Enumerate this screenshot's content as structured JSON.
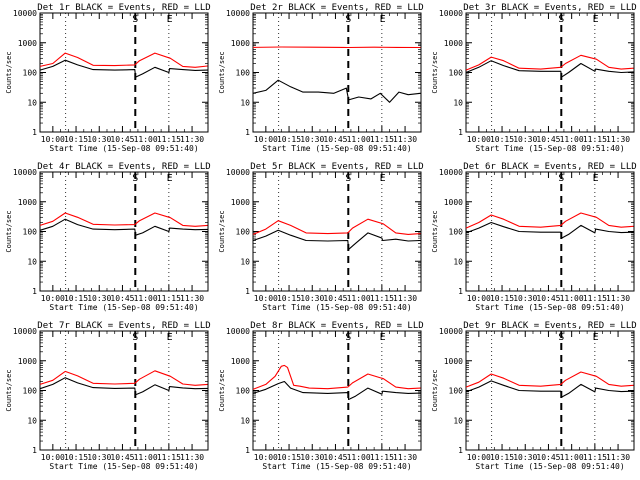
{
  "figure": {
    "xtick_labels": [
      "10:00",
      "10:15",
      "10:30",
      "10:45",
      "11:00",
      "11:15",
      "11:30"
    ],
    "ytick_labels": [
      "1",
      "10",
      "100",
      "1000",
      "10000"
    ],
    "ylabel": "Counts/sec",
    "xlabel": "Start Time (15-Sep-08 09:51:40)",
    "marker_s": "S",
    "marker_e": "E"
  },
  "chart_data": [
    {
      "type": "line",
      "title": "Det 1r BLACK = Events, RED = LLD",
      "xlabel": "Start Time (15-Sep-08 09:51:40)",
      "ylabel": "Counts/sec",
      "y_scale": "log",
      "ylim": [
        1,
        10000
      ],
      "xlim_minutes": [
        -8.3,
        100.3
      ],
      "x_ticks": [
        "10:00",
        "10:15",
        "10:30",
        "10:45",
        "11:00",
        "11:15",
        "11:30"
      ],
      "dotted_vlines_minutes": [
        8.3,
        75.0
      ],
      "dashed_vline_minutes": 53.3,
      "markers": [
        {
          "label": "S",
          "minute": 53.3
        },
        {
          "label": "E",
          "minute": 75.5
        }
      ],
      "series": [
        {
          "name": "RED = LLD",
          "color": "#ff0000",
          "x": [
            -8.3,
            0,
            8,
            16,
            26,
            40,
            53,
            56,
            66,
            76,
            84,
            92,
            100
          ],
          "y": [
            160,
            200,
            450,
            320,
            175,
            170,
            180,
            250,
            450,
            300,
            160,
            150,
            165
          ]
        },
        {
          "name": "BLACK = Events",
          "color": "#000000",
          "x": [
            -8.3,
            0,
            8,
            16,
            26,
            40,
            53,
            53.5,
            58,
            66,
            75,
            75.5,
            84,
            92,
            100
          ],
          "y": [
            120,
            160,
            260,
            180,
            125,
            120,
            125,
            70,
            90,
            150,
            100,
            135,
            125,
            118,
            120
          ]
        }
      ]
    },
    {
      "type": "line",
      "title": "Det 2r BLACK = Events, RED = LLD",
      "xlabel": "Start Time (15-Sep-08 09:51:40)",
      "ylabel": "Counts/sec",
      "y_scale": "log",
      "ylim": [
        1,
        10000
      ],
      "xlim_minutes": [
        -8.3,
        100.3
      ],
      "x_ticks": [
        "10:00",
        "10:15",
        "10:30",
        "10:45",
        "11:00",
        "11:15",
        "11:30"
      ],
      "dotted_vlines_minutes": [
        8.3,
        75.0
      ],
      "dashed_vline_minutes": 53.3,
      "markers": [
        {
          "label": "S",
          "minute": 53.3
        },
        {
          "label": "E",
          "minute": 75.5
        }
      ],
      "series": [
        {
          "name": "RED = LLD",
          "color": "#ff0000",
          "x": [
            -8.3,
            10,
            30,
            50,
            53,
            70,
            85,
            100
          ],
          "y": [
            700,
            720,
            710,
            700,
            690,
            710,
            700,
            690
          ]
        },
        {
          "name": "BLACK = Events",
          "color": "#000000",
          "x": [
            -8.3,
            0,
            8,
            16,
            24,
            34,
            44,
            52,
            53.5,
            60,
            68,
            74,
            80,
            86,
            92,
            100
          ],
          "y": [
            20,
            25,
            55,
            33,
            22,
            22,
            20,
            30,
            12,
            15,
            13,
            20,
            10,
            22,
            18,
            20
          ]
        }
      ]
    },
    {
      "type": "line",
      "title": "Det 3r BLACK = Events, RED = LLD",
      "xlabel": "Start Time (15-Sep-08 09:51:40)",
      "ylabel": "Counts/sec",
      "y_scale": "log",
      "ylim": [
        1,
        10000
      ],
      "xlim_minutes": [
        -8.3,
        100.3
      ],
      "x_ticks": [
        "10:00",
        "10:15",
        "10:30",
        "10:45",
        "11:00",
        "11:15",
        "11:30"
      ],
      "dotted_vlines_minutes": [
        8.3,
        75.0
      ],
      "dashed_vline_minutes": 53.3,
      "markers": [
        {
          "label": "S",
          "minute": 53.3
        },
        {
          "label": "E",
          "minute": 75.5
        }
      ],
      "series": [
        {
          "name": "RED = LLD",
          "color": "#ff0000",
          "x": [
            -8.3,
            0,
            8,
            16,
            26,
            40,
            53,
            56,
            66,
            76,
            84,
            92,
            100
          ],
          "y": [
            120,
            180,
            330,
            250,
            140,
            130,
            150,
            200,
            380,
            280,
            150,
            130,
            140
          ]
        },
        {
          "name": "BLACK = Events",
          "color": "#000000",
          "x": [
            -8.3,
            0,
            8,
            16,
            26,
            40,
            53,
            53.5,
            58,
            66,
            75,
            75.5,
            84,
            92,
            100
          ],
          "y": [
            100,
            150,
            250,
            170,
            115,
            110,
            110,
            70,
            100,
            200,
            110,
            130,
            110,
            100,
            105
          ]
        }
      ]
    },
    {
      "type": "line",
      "title": "Det 4r BLACK = Events, RED = LLD",
      "xlabel": "Start Time (15-Sep-08 09:51:40)",
      "ylabel": "Counts/sec",
      "y_scale": "log",
      "ylim": [
        1,
        10000
      ],
      "xlim_minutes": [
        -8.3,
        100.3
      ],
      "x_ticks": [
        "10:00",
        "10:15",
        "10:30",
        "10:45",
        "11:00",
        "11:15",
        "11:30"
      ],
      "dotted_vlines_minutes": [
        8.3,
        75.0
      ],
      "dashed_vline_minutes": 53.3,
      "markers": [
        {
          "label": "S",
          "minute": 53.3
        },
        {
          "label": "E",
          "minute": 75.5
        }
      ],
      "series": [
        {
          "name": "RED = LLD",
          "color": "#ff0000",
          "x": [
            -8.3,
            0,
            8,
            16,
            26,
            40,
            53,
            56,
            66,
            76,
            84,
            92,
            100
          ],
          "y": [
            160,
            220,
            420,
            300,
            175,
            165,
            170,
            230,
            420,
            290,
            160,
            150,
            160
          ]
        },
        {
          "name": "BLACK = Events",
          "color": "#000000",
          "x": [
            -8.3,
            0,
            8,
            16,
            26,
            40,
            53,
            53.5,
            58,
            66,
            75,
            75.5,
            84,
            92,
            100
          ],
          "y": [
            110,
            150,
            260,
            170,
            120,
            115,
            120,
            75,
            90,
            150,
            100,
            130,
            120,
            115,
            118
          ]
        }
      ]
    },
    {
      "type": "line",
      "title": "Det 5r BLACK = Events, RED = LLD",
      "xlabel": "Start Time (15-Sep-08 09:51:40)",
      "ylabel": "Counts/sec",
      "y_scale": "log",
      "ylim": [
        1,
        10000
      ],
      "xlim_minutes": [
        -8.3,
        100.3
      ],
      "x_ticks": [
        "10:00",
        "10:15",
        "10:30",
        "10:45",
        "11:00",
        "11:15",
        "11:30"
      ],
      "dotted_vlines_minutes": [
        8.3,
        75.0
      ],
      "dashed_vline_minutes": 53.3,
      "markers": [
        {
          "label": "S",
          "minute": 53.3
        },
        {
          "label": "E",
          "minute": 75.5
        }
      ],
      "series": [
        {
          "name": "RED = LLD",
          "color": "#ff0000",
          "x": [
            -8.3,
            0,
            8,
            16,
            26,
            40,
            53,
            56,
            66,
            76,
            84,
            92,
            100
          ],
          "y": [
            80,
            120,
            230,
            160,
            90,
            85,
            90,
            130,
            260,
            180,
            90,
            80,
            85
          ]
        },
        {
          "name": "BLACK = Events",
          "color": "#000000",
          "x": [
            -8.3,
            0,
            8,
            16,
            26,
            40,
            53,
            53.5,
            58,
            66,
            75,
            75.5,
            84,
            92,
            100
          ],
          "y": [
            50,
            70,
            110,
            75,
            50,
            48,
            50,
            25,
            40,
            90,
            60,
            50,
            55,
            48,
            50
          ]
        }
      ]
    },
    {
      "type": "line",
      "title": "Det 6r BLACK = Events, RED = LLD",
      "xlabel": "Start Time (15-Sep-08 09:51:40)",
      "ylabel": "Counts/sec",
      "y_scale": "log",
      "ylim": [
        1,
        10000
      ],
      "xlim_minutes": [
        -8.3,
        100.3
      ],
      "x_ticks": [
        "10:00",
        "10:15",
        "10:30",
        "10:45",
        "11:00",
        "11:15",
        "11:30"
      ],
      "dotted_vlines_minutes": [
        8.3,
        75.0
      ],
      "dashed_vline_minutes": 53.3,
      "markers": [
        {
          "label": "S",
          "minute": 53.3
        },
        {
          "label": "E",
          "minute": 75.5
        }
      ],
      "series": [
        {
          "name": "RED = LLD",
          "color": "#ff0000",
          "x": [
            -8.3,
            0,
            8,
            16,
            26,
            40,
            53,
            56,
            66,
            76,
            84,
            92,
            100
          ],
          "y": [
            130,
            200,
            360,
            260,
            150,
            140,
            160,
            220,
            420,
            300,
            160,
            140,
            150
          ]
        },
        {
          "name": "BLACK = Events",
          "color": "#000000",
          "x": [
            -8.3,
            0,
            8,
            16,
            26,
            40,
            53,
            53.5,
            58,
            66,
            75,
            75.5,
            84,
            92,
            100
          ],
          "y": [
            90,
            130,
            200,
            145,
            100,
            95,
            95,
            60,
            80,
            160,
            90,
            120,
            100,
            92,
            95
          ]
        }
      ]
    },
    {
      "type": "line",
      "title": "Det 7r BLACK = Events, RED = LLD",
      "xlabel": "Start Time (15-Sep-08 09:51:40)",
      "ylabel": "Counts/sec",
      "y_scale": "log",
      "ylim": [
        1,
        10000
      ],
      "xlim_minutes": [
        -8.3,
        100.3
      ],
      "x_ticks": [
        "10:00",
        "10:15",
        "10:30",
        "10:45",
        "11:00",
        "11:15",
        "11:30"
      ],
      "dotted_vlines_minutes": [
        8.3,
        75.0
      ],
      "dashed_vline_minutes": 53.3,
      "markers": [
        {
          "label": "S",
          "minute": 53.3
        },
        {
          "label": "E",
          "minute": 75.5
        }
      ],
      "series": [
        {
          "name": "RED = LLD",
          "color": "#ff0000",
          "x": [
            -8.3,
            0,
            8,
            16,
            26,
            40,
            53,
            56,
            66,
            76,
            84,
            92,
            100
          ],
          "y": [
            160,
            220,
            440,
            310,
            175,
            165,
            175,
            240,
            460,
            300,
            165,
            150,
            160
          ]
        },
        {
          "name": "BLACK = Events",
          "color": "#000000",
          "x": [
            -8.3,
            0,
            8,
            16,
            26,
            40,
            53,
            53.5,
            58,
            66,
            75,
            75.5,
            84,
            92,
            100
          ],
          "y": [
            115,
            160,
            270,
            180,
            125,
            118,
            120,
            72,
            90,
            155,
            100,
            135,
            122,
            115,
            118
          ]
        }
      ]
    },
    {
      "type": "line",
      "title": "Det 8r BLACK = Events, RED = LLD",
      "xlabel": "Start Time (15-Sep-08 09:51:40)",
      "ylabel": "Counts/sec",
      "y_scale": "log",
      "ylim": [
        1,
        10000
      ],
      "xlim_minutes": [
        -8.3,
        100.3
      ],
      "x_ticks": [
        "10:00",
        "10:15",
        "10:30",
        "10:45",
        "11:00",
        "11:15",
        "11:30"
      ],
      "dotted_vlines_minutes": [
        8.3,
        75.0
      ],
      "dashed_vline_minutes": 53.3,
      "markers": [
        {
          "label": "S",
          "minute": 53.3
        },
        {
          "label": "E",
          "minute": 75.5
        }
      ],
      "series": [
        {
          "name": "RED = LLD",
          "color": "#ff0000",
          "x": [
            -8.3,
            0,
            6,
            10,
            12,
            14,
            18,
            22,
            28,
            40,
            53,
            56,
            66,
            76,
            84,
            92,
            100
          ],
          "y": [
            110,
            160,
            300,
            650,
            700,
            600,
            150,
            140,
            120,
            115,
            130,
            180,
            360,
            250,
            130,
            115,
            120
          ]
        },
        {
          "name": "BLACK = Events",
          "color": "#000000",
          "x": [
            -8.3,
            0,
            8,
            12,
            16,
            24,
            40,
            53,
            53.5,
            58,
            66,
            75,
            75.5,
            84,
            92,
            100
          ],
          "y": [
            80,
            110,
            170,
            200,
            120,
            85,
            80,
            85,
            50,
            65,
            120,
            75,
            95,
            85,
            80,
            82
          ]
        }
      ]
    },
    {
      "type": "line",
      "title": "Det 9r BLACK = Events, RED = LLD",
      "xlabel": "Start Time (15-Sep-08 09:51:40)",
      "ylabel": "Counts/sec",
      "y_scale": "log",
      "ylim": [
        1,
        10000
      ],
      "xlim_minutes": [
        -8.3,
        100.3
      ],
      "x_ticks": [
        "10:00",
        "10:15",
        "10:30",
        "10:45",
        "11:00",
        "11:15",
        "11:30"
      ],
      "dotted_vlines_minutes": [
        8.3,
        75.0
      ],
      "dashed_vline_minutes": 53.3,
      "markers": [
        {
          "label": "S",
          "minute": 53.3
        },
        {
          "label": "E",
          "minute": 75.5
        }
      ],
      "series": [
        {
          "name": "RED = LLD",
          "color": "#ff0000",
          "x": [
            -8.3,
            0,
            8,
            16,
            26,
            40,
            53,
            56,
            66,
            76,
            84,
            92,
            100
          ],
          "y": [
            130,
            190,
            360,
            260,
            150,
            140,
            160,
            220,
            420,
            300,
            160,
            140,
            150
          ]
        },
        {
          "name": "BLACK = Events",
          "color": "#000000",
          "x": [
            -8.3,
            0,
            8,
            16,
            26,
            40,
            53,
            53.5,
            58,
            66,
            75,
            75.5,
            84,
            92,
            100
          ],
          "y": [
            90,
            130,
            210,
            150,
            100,
            95,
            95,
            60,
            80,
            160,
            90,
            120,
            100,
            92,
            95
          ]
        }
      ]
    }
  ]
}
